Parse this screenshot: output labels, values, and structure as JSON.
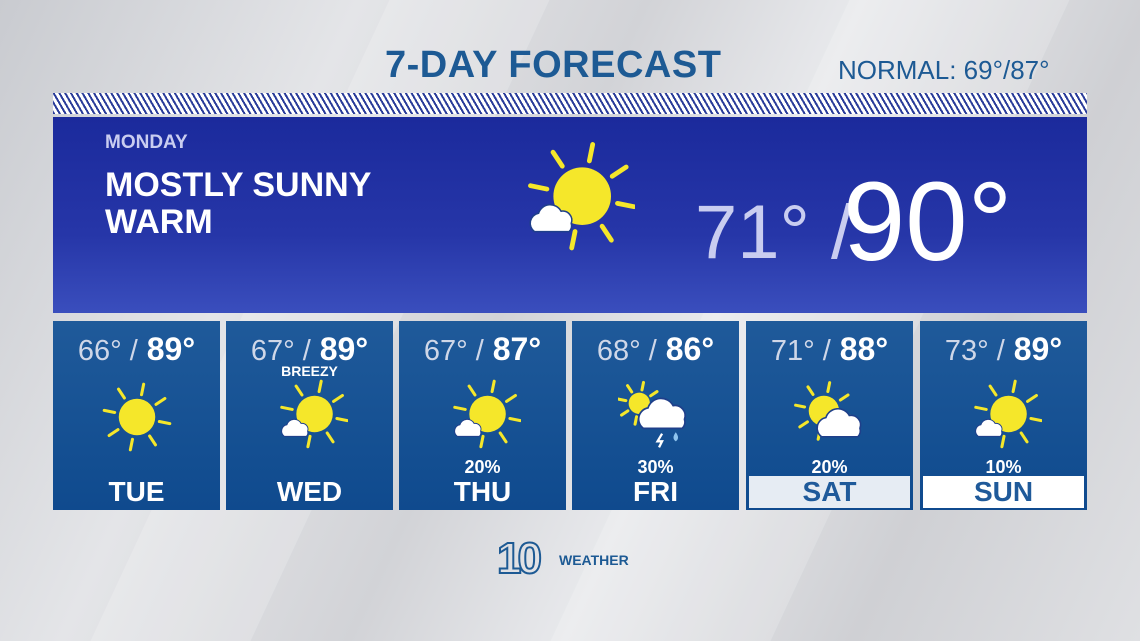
{
  "header": {
    "title": "7-DAY FORECAST",
    "normal": "NORMAL: 69°/87°"
  },
  "today": {
    "day": "MONDAY",
    "condition_line1": "MOSTLY SUNNY",
    "condition_line2": "WARM",
    "low": "71° /",
    "high": "90°",
    "icon": "partly-sunny-icon"
  },
  "days": [
    {
      "name": "TUE",
      "low": "66° /",
      "high": "89°",
      "note": "",
      "precip": "",
      "icon": "sunny-icon"
    },
    {
      "name": "WED",
      "low": "67° /",
      "high": "89°",
      "note": "BREEZY",
      "precip": "",
      "icon": "partly-sunny-icon"
    },
    {
      "name": "THU",
      "low": "67° /",
      "high": "87°",
      "note": "",
      "precip": "20%",
      "icon": "partly-sunny-icon"
    },
    {
      "name": "FRI",
      "low": "68° /",
      "high": "86°",
      "note": "",
      "precip": "30%",
      "icon": "storm-icon"
    },
    {
      "name": "SAT",
      "low": "71° /",
      "high": "88°",
      "note": "",
      "precip": "20%",
      "icon": "partly-cloudy-icon"
    },
    {
      "name": "SUN",
      "low": "73° /",
      "high": "89°",
      "note": "",
      "precip": "10%",
      "icon": "partly-sunny-icon"
    }
  ],
  "logo": {
    "number": "10",
    "text": "WEATHER"
  },
  "colors": {
    "title": "#1d5a94",
    "panel": "#1b2a9c",
    "card": "#1f5a9a",
    "sun": "#f5e72a"
  }
}
